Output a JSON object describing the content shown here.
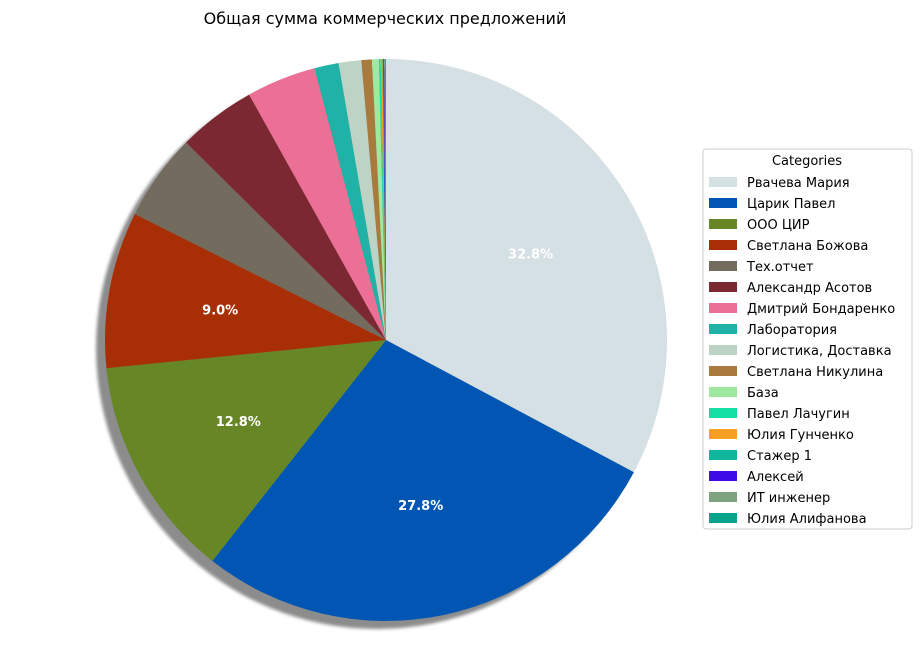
{
  "chart_data": {
    "type": "pie",
    "title": "Общая сумма коммерческих предложений",
    "legend_title": "Categories",
    "legend_position": "right",
    "start_angle_deg": 90,
    "direction": "clockwise",
    "shadow": true,
    "slices": [
      {
        "name": "Рвачева Мария",
        "percent": 32.8,
        "label": "32.8%",
        "color": "#d5e0e4"
      },
      {
        "name": "Царик Павел",
        "percent": 27.8,
        "label": "27.8%",
        "color": "#0156b4"
      },
      {
        "name": "ООО ЦИР",
        "percent": 12.8,
        "label": "12.8%",
        "color": "#678626"
      },
      {
        "name": "Светлана Божова",
        "percent": 9.0,
        "label": "9.0%",
        "color": "#a82f05"
      },
      {
        "name": "Тех.отчет",
        "percent": 5.0,
        "label": "",
        "color": "#736b5e"
      },
      {
        "name": "Александр Асотов",
        "percent": 4.5,
        "label": "",
        "color": "#7c2833"
      },
      {
        "name": "Дмитрий Бондаренко",
        "percent": 4.0,
        "label": "",
        "color": "#ec6f95"
      },
      {
        "name": "Лаборатория",
        "percent": 1.4,
        "label": "",
        "color": "#20b2a6"
      },
      {
        "name": "Логистика,  Доставка",
        "percent": 1.3,
        "label": "",
        "color": "#bcd3c5"
      },
      {
        "name": "Светлана Никулина",
        "percent": 0.6,
        "label": "",
        "color": "#a87a3e"
      },
      {
        "name": "База",
        "percent": 0.4,
        "label": "",
        "color": "#9de9a0"
      },
      {
        "name": "Павел Лачугин",
        "percent": 0.1,
        "label": "",
        "color": "#13dfa4"
      },
      {
        "name": "Юлия Гунченко",
        "percent": 0.1,
        "label": "",
        "color": "#f5a020"
      },
      {
        "name": "Стажер 1",
        "percent": 0.05,
        "label": "",
        "color": "#11b59e"
      },
      {
        "name": "Алексей",
        "percent": 0.05,
        "label": "",
        "color": "#3e0ae8"
      },
      {
        "name": "ИТ инженер",
        "percent": 0.05,
        "label": "",
        "color": "#7ea37f"
      },
      {
        "name": "Юлия Алифанова",
        "percent": 0.05,
        "label": "",
        "color": "#0aa38c"
      }
    ]
  }
}
